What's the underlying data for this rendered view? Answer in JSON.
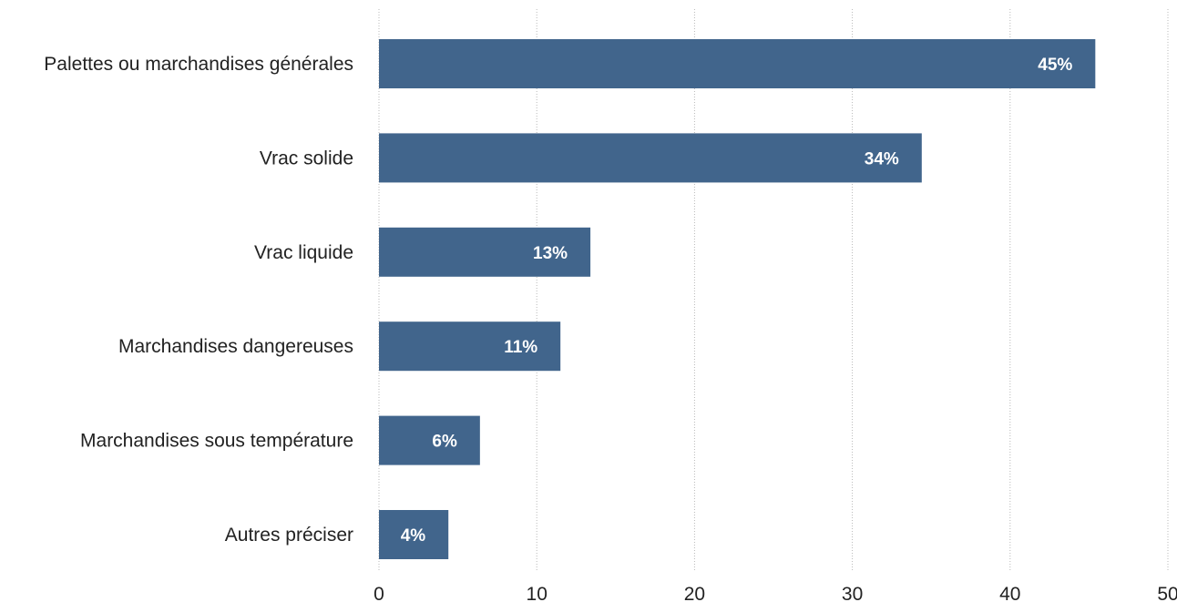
{
  "chart_data": {
    "type": "bar",
    "orientation": "horizontal",
    "title": "",
    "xlabel": "",
    "ylabel": "",
    "categories": [
      "Palettes ou marchandises générales",
      "Vrac solide",
      "Vrac liquide",
      "Marchandises dangereuses",
      "Marchandises sous température",
      "Autres préciser"
    ],
    "values": [
      45.4,
      34.4,
      13.4,
      11.5,
      6.4,
      4.4
    ],
    "data_labels": [
      "45%",
      "34%",
      "13%",
      "11%",
      "6%",
      "4%"
    ],
    "xlim": [
      0,
      50
    ],
    "x_ticks": [
      "0",
      "10",
      "20",
      "30",
      "40",
      "50"
    ],
    "grid": true,
    "legend": "none",
    "colors": {
      "bar": "#41658c",
      "grid": "#b8b8b8",
      "text": "#222222",
      "data_label": "#ffffff"
    }
  }
}
